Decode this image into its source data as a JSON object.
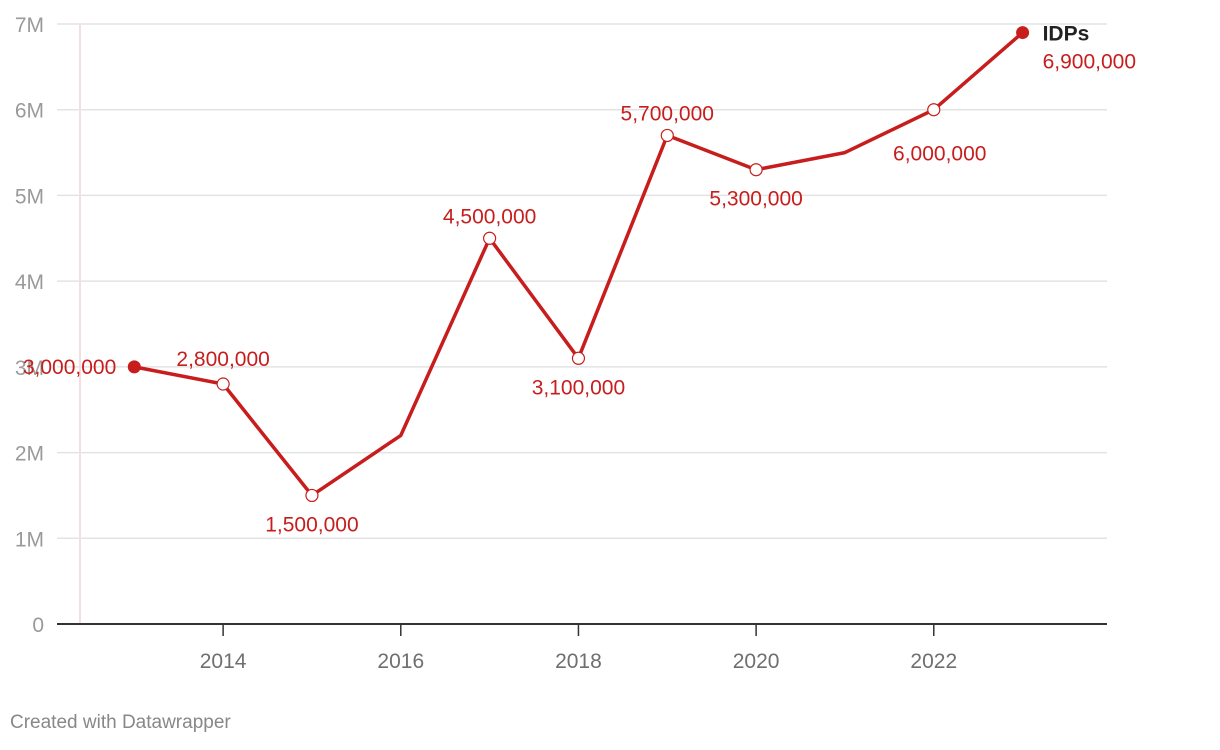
{
  "chart_data": {
    "type": "line",
    "x": [
      2013,
      2014,
      2015,
      2016,
      2017,
      2018,
      2019,
      2020,
      2021,
      2022,
      2023
    ],
    "series": [
      {
        "name": "IDPs",
        "values": [
          3000000,
          2800000,
          1500000,
          2200000,
          4500000,
          3100000,
          5700000,
          5300000,
          5500000,
          6000000,
          6900000
        ],
        "labels": [
          "3,000,000",
          "2,800,000",
          "1,500,000",
          "",
          "4,500,000",
          "3,100,000",
          "5,700,000",
          "5,300,000",
          "",
          "6,000,000",
          "6,900,000"
        ]
      }
    ],
    "x_ticks": [
      2014,
      2016,
      2018,
      2020,
      2022
    ],
    "x_tick_labels": [
      "2014",
      "2016",
      "2018",
      "2020",
      "2022"
    ],
    "y_ticks": [
      0,
      1000000,
      2000000,
      3000000,
      4000000,
      5000000,
      6000000,
      7000000
    ],
    "y_tick_labels": [
      "0",
      "1M",
      "2M",
      "3M",
      "4M",
      "5M",
      "6M",
      "7M"
    ],
    "ylim": [
      0,
      7000000
    ],
    "xlim": [
      2012.13,
      2023.95
    ],
    "grid": true,
    "colors": {
      "line": "#c71e1d",
      "grid": "#e3e3e3",
      "axis": "#333333"
    }
  },
  "credit": "Created with Datawrapper"
}
